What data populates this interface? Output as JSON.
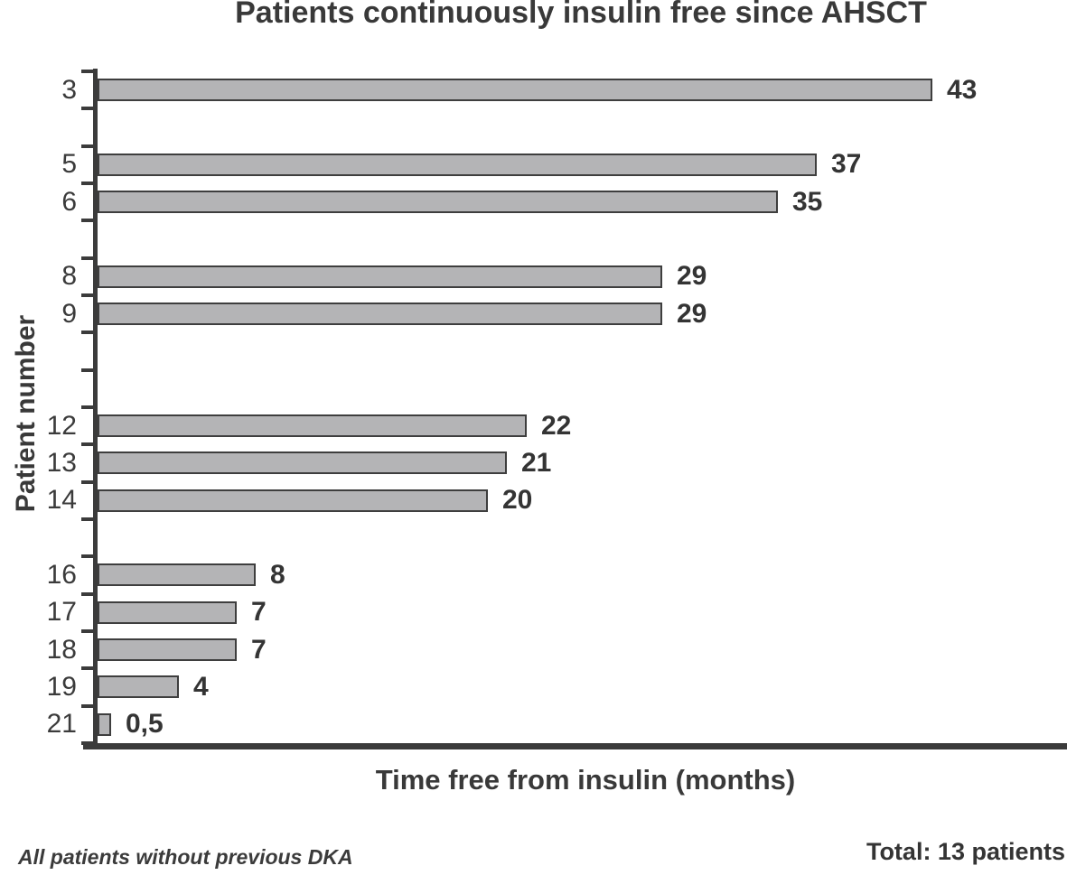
{
  "chart_data": {
    "type": "bar",
    "orientation": "horizontal",
    "title": "Patients continuously insulin free since AHSCT",
    "xlabel": "Time free from insulin (months)",
    "ylabel": "Patient number",
    "xlim": [
      0,
      48
    ],
    "grid": false,
    "legend_position": "none",
    "categories": [
      "3",
      "5",
      "6",
      "8",
      "9",
      "12",
      "13",
      "14",
      "16",
      "17",
      "18",
      "19",
      "21"
    ],
    "values": [
      43,
      37,
      35,
      29,
      29,
      22,
      21,
      20,
      8,
      7,
      7,
      4,
      0.5
    ],
    "value_labels": [
      "43",
      "37",
      "35",
      "29",
      "29",
      "22",
      "21",
      "20",
      "8",
      "7",
      "7",
      "4",
      "0,5"
    ],
    "rows": [
      {
        "label": "3",
        "value": 43,
        "value_label": "43"
      },
      {
        "label": "",
        "value": null,
        "value_label": ""
      },
      {
        "label": "5",
        "value": 37,
        "value_label": "37"
      },
      {
        "label": "6",
        "value": 35,
        "value_label": "35"
      },
      {
        "label": "",
        "value": null,
        "value_label": ""
      },
      {
        "label": "8",
        "value": 29,
        "value_label": "29"
      },
      {
        "label": "9",
        "value": 29,
        "value_label": "29"
      },
      {
        "label": "",
        "value": null,
        "value_label": ""
      },
      {
        "label": "",
        "value": null,
        "value_label": ""
      },
      {
        "label": "12",
        "value": 22,
        "value_label": "22"
      },
      {
        "label": "13",
        "value": 21,
        "value_label": "21"
      },
      {
        "label": "14",
        "value": 20,
        "value_label": "20"
      },
      {
        "label": "",
        "value": null,
        "value_label": ""
      },
      {
        "label": "16",
        "value": 8,
        "value_label": "8"
      },
      {
        "label": "17",
        "value": 7,
        "value_label": "7"
      },
      {
        "label": "18",
        "value": 7,
        "value_label": "7"
      },
      {
        "label": "19",
        "value": 4,
        "value_label": "4"
      },
      {
        "label": "21",
        "value": 0.5,
        "value_label": "0,5"
      }
    ],
    "bar_color": "#b4b4b6",
    "bar_border_color": "#3e3e3e",
    "axis_color": "#3b3b3b",
    "text_color": "#393939"
  },
  "footer": {
    "note": "All patients without previous DKA",
    "total": "Total: 13 patients"
  }
}
